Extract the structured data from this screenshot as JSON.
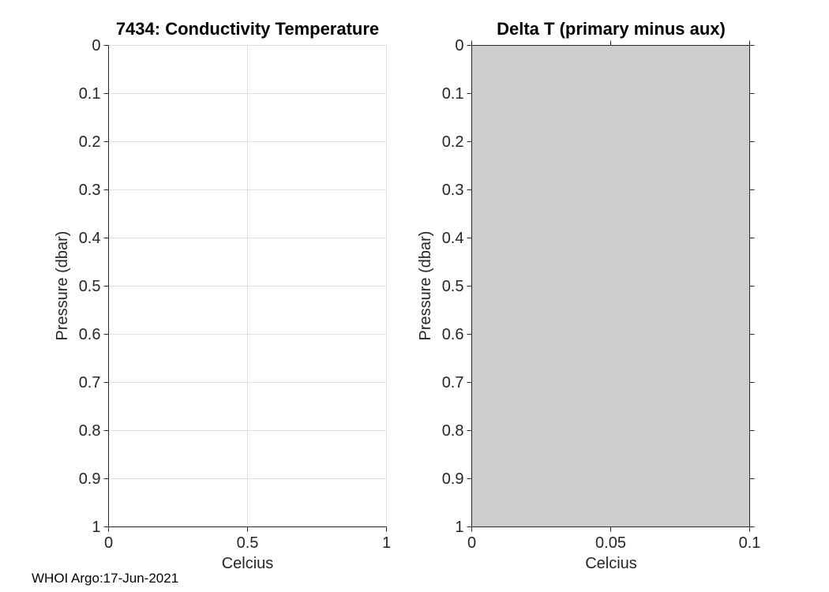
{
  "figure": {
    "footer_credit": "WHOI Argo:17-Jun-2021",
    "background": "#ffffff"
  },
  "colors": {
    "axis": "#262626",
    "tick_label": "#262626",
    "title": "#000000",
    "grid": "#dfdfdf",
    "area_fill": "#cecece",
    "area_edge": "#262626"
  },
  "chart_data": [
    {
      "type": "line",
      "title": "7434: Conductivity Temperature",
      "xlabel": "Celcius",
      "ylabel": "Pressure (dbar)",
      "xlim": [
        0,
        1
      ],
      "ylim": [
        0,
        1
      ],
      "y_inverted": true,
      "grid": true,
      "box": false,
      "xticks": [
        0,
        0.5,
        1
      ],
      "xtick_labels": [
        "0",
        "0.5",
        "1"
      ],
      "yticks": [
        0,
        0.1,
        0.2,
        0.3,
        0.4,
        0.5,
        0.6,
        0.7,
        0.8,
        0.9,
        1
      ],
      "ytick_labels": [
        "0",
        "0.1",
        "0.2",
        "0.3",
        "0.4",
        "0.5",
        "0.6",
        "0.7",
        "0.8",
        "0.9",
        "1"
      ],
      "series": []
    },
    {
      "type": "area",
      "title": "Delta T (primary minus aux)",
      "xlabel": "Celcius",
      "ylabel": "Pressure (dbar)",
      "xlim": [
        0,
        0.1
      ],
      "ylim": [
        0,
        1
      ],
      "y_inverted": true,
      "grid": false,
      "box": true,
      "xticks": [
        0,
        0.05,
        0.1
      ],
      "xtick_labels": [
        "0",
        "0.05",
        "0.1"
      ],
      "yticks": [
        0,
        0.1,
        0.2,
        0.3,
        0.4,
        0.5,
        0.6,
        0.7,
        0.8,
        0.9,
        1
      ],
      "ytick_labels": [
        "0",
        "0.1",
        "0.2",
        "0.3",
        "0.4",
        "0.5",
        "0.6",
        "0.7",
        "0.8",
        "0.9",
        "1"
      ],
      "area": {
        "x_range": [
          0,
          0.1
        ],
        "y_range": [
          0,
          1
        ]
      }
    }
  ]
}
